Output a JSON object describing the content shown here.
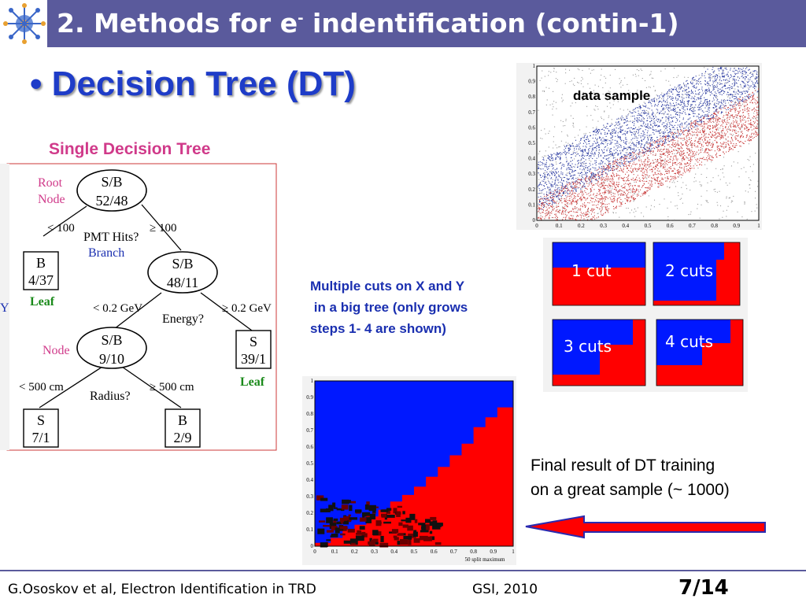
{
  "slide": {
    "title_main": "2. Methods for e",
    "title_sup": "-",
    "title_rest": " indentification (contin-1)",
    "bullet": "•",
    "heading": "Decision Tree (DT)"
  },
  "tree": {
    "heading": "Single Decision Tree",
    "root_label_1": "Root",
    "root_label_2": "Node",
    "root_1": "S/B",
    "root_2": "52/48",
    "edge_lt100": "< 100",
    "edge_ge100": "≥ 100",
    "q_pmt": "PMT Hits?",
    "branch": "Branch",
    "leaf_b1_1": "B",
    "leaf_b1_2": "4/37",
    "leaf_label": "Leaf",
    "node2_1": "S/B",
    "node2_2": "48/11",
    "edge_lt02": "< 0.2 GeV",
    "edge_ge02": "≥ 0.2 GeV",
    "q_energy": "Energy?",
    "node_label": "Node",
    "node3_1": "S/B",
    "node3_2": "9/10",
    "leaf_s1_1": "S",
    "leaf_s1_2": "39/1",
    "edge_lt500": "< 500 cm",
    "edge_ge500": "≥ 500 cm",
    "q_radius": "Radius?",
    "leaf_s2_1": "S",
    "leaf_s2_2": "7/1",
    "leaf_b2_1": "B",
    "leaf_b2_2": "2/9",
    "edge_y": "Y"
  },
  "plots": {
    "data_sample_label": "data sample",
    "ticks": [
      "0",
      "0.1",
      "0.2",
      "0.3",
      "0.4",
      "0.5",
      "0.6",
      "0.7",
      "0.8",
      "0.9",
      "1"
    ],
    "split_label": "50 split maximum",
    "cut1": "1 cut",
    "cut2": "2 cuts",
    "cut3": "3 cuts",
    "cut4": "4 cuts"
  },
  "captions": {
    "multi_1": "Multiple cuts on X and Y",
    "multi_2": " in a big tree (only grows",
    "multi_3": "steps 1- 4 are shown)",
    "final_1": "Final result of DT training",
    "final_2": "on a great sample (~ 1000)"
  },
  "footer": {
    "authors": "G.Ososkov et al, Electron Identification in TRD",
    "venue": "GSI, 2010",
    "page": "7/14"
  },
  "colors": {
    "title_bar": "#5a5a9c",
    "heading_blue": "#1e3cc8",
    "signal_red": "#ff0000",
    "background_blue": "#0018ff",
    "tree_pink": "#d03a8a",
    "leaf_green": "#1a8a1a"
  }
}
